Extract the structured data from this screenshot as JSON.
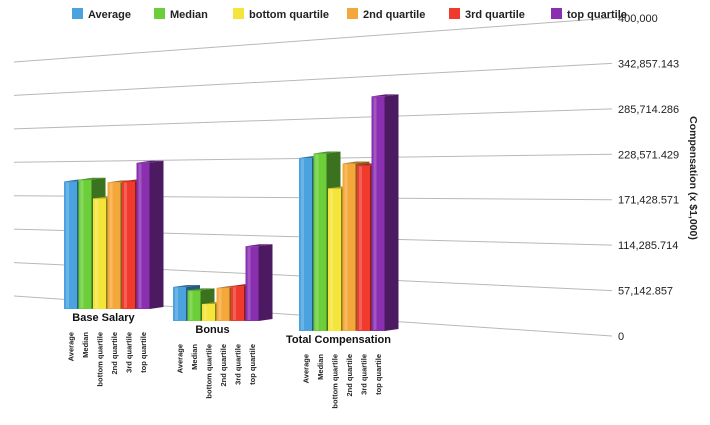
{
  "chart_data": {
    "type": "bar",
    "title": "",
    "xlabel": "",
    "ylabel": "Compensation (x $1,000)",
    "ylim": [
      0,
      400000
    ],
    "y_ticks": [
      "0",
      "57,142.857",
      "114,285.714",
      "171,428.571",
      "228,571.429",
      "285,714.286",
      "342,857.143",
      "400,000"
    ],
    "categories": [
      "Base Salary",
      "Bonus",
      "Total Compensation"
    ],
    "series": [
      {
        "name": "Average",
        "color": "#4aa3df",
        "values": [
          150000,
          40000,
          188000
        ]
      },
      {
        "name": "Median",
        "color": "#6ccf3a",
        "values": [
          152000,
          36000,
          193000
        ]
      },
      {
        "name": "bottom quartile",
        "color": "#f5e43a",
        "values": [
          130000,
          20000,
          155000
        ]
      },
      {
        "name": "2nd quartile",
        "color": "#f5a83a",
        "values": [
          149000,
          39000,
          182000
        ]
      },
      {
        "name": "3rd quartile",
        "color": "#f03a2e",
        "values": [
          150000,
          41000,
          180000
        ]
      },
      {
        "name": "top quartile",
        "color": "#8a2fb0",
        "values": [
          172000,
          88000,
          255000
        ]
      }
    ],
    "grid": true,
    "legend_position": "top",
    "chart_style": "3d-bar"
  }
}
